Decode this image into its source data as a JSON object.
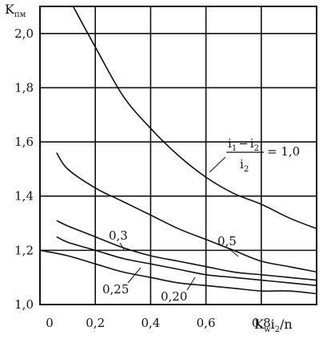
{
  "chart_data": {
    "type": "line",
    "y_axis_label": "K",
    "y_axis_label_sub": "пм",
    "x_axis_label": "K",
    "x_axis_label_sub": "w",
    "x_axis_label_rest": "i",
    "x_axis_label_sub2": "2",
    "x_axis_label_tail": "/n",
    "xlim": [
      0,
      1.0
    ],
    "ylim": [
      1.0,
      2.1
    ],
    "x_ticks": [
      {
        "value": 0,
        "label": "0"
      },
      {
        "value": 0.2,
        "label": "0,2"
      },
      {
        "value": 0.4,
        "label": "0,4"
      },
      {
        "value": 0.6,
        "label": "0,6"
      },
      {
        "value": 0.8,
        "label": "0,8"
      }
    ],
    "y_ticks": [
      {
        "value": 1.0,
        "label": "1,0"
      },
      {
        "value": 1.2,
        "label": "1,2"
      },
      {
        "value": 1.4,
        "label": "1,4"
      },
      {
        "value": 1.6,
        "label": "1,6"
      },
      {
        "value": 1.8,
        "label": "1,8"
      },
      {
        "value": 2.0,
        "label": "2,0"
      }
    ],
    "grid": true,
    "series": [
      {
        "name": "1,0",
        "x": [
          0.12,
          0.2,
          0.3,
          0.4,
          0.5,
          0.6,
          0.7,
          0.8,
          0.9,
          1.0
        ],
        "y": [
          2.1,
          1.95,
          1.77,
          1.65,
          1.55,
          1.47,
          1.41,
          1.37,
          1.32,
          1.28
        ]
      },
      {
        "name": "0,5",
        "x": [
          0.06,
          0.1,
          0.2,
          0.3,
          0.4,
          0.5,
          0.6,
          0.7,
          0.8,
          0.9,
          1.0
        ],
        "y": [
          1.56,
          1.5,
          1.43,
          1.38,
          1.33,
          1.28,
          1.24,
          1.2,
          1.16,
          1.14,
          1.12
        ]
      },
      {
        "name": "0,3",
        "x": [
          0.06,
          0.1,
          0.2,
          0.3,
          0.4,
          0.5,
          0.6,
          0.7,
          0.8,
          0.9,
          1.0
        ],
        "y": [
          1.31,
          1.29,
          1.25,
          1.21,
          1.18,
          1.16,
          1.14,
          1.12,
          1.11,
          1.1,
          1.09
        ]
      },
      {
        "name": "0,25",
        "x": [
          0.06,
          0.1,
          0.2,
          0.3,
          0.4,
          0.5,
          0.6,
          0.7,
          0.8,
          0.9,
          1.0
        ],
        "y": [
          1.25,
          1.23,
          1.2,
          1.17,
          1.15,
          1.13,
          1.11,
          1.1,
          1.09,
          1.08,
          1.07
        ]
      },
      {
        "name": "0,20",
        "x": [
          0.0,
          0.1,
          0.2,
          0.3,
          0.4,
          0.5,
          0.6,
          0.7,
          0.8,
          0.9,
          1.0
        ],
        "y": [
          1.2,
          1.18,
          1.15,
          1.12,
          1.1,
          1.08,
          1.07,
          1.06,
          1.05,
          1.05,
          1.04
        ]
      }
    ],
    "annotations": {
      "big_label_num_a": "i",
      "big_label_num_a_sub": "1",
      "big_label_minus": "−",
      "big_label_num_b": "i",
      "big_label_num_b_sub": "2",
      "big_label_den": "i",
      "big_label_den_sub": "2",
      "big_label_value": "= 1,0",
      "label_05": "0,5",
      "label_03": "0,3",
      "label_025": "0,25",
      "label_020": "0,20"
    }
  }
}
